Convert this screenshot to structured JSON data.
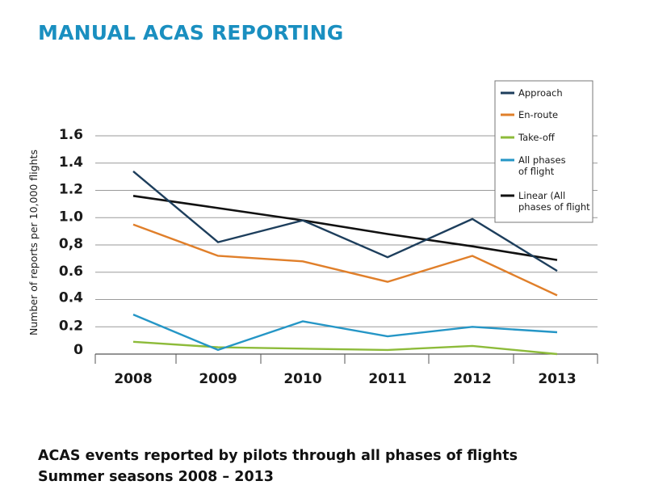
{
  "title": "MANUAL ACAS REPORTING",
  "caption": {
    "line1": "ACAS events reported by pilots through all phases of flights",
    "line2": "Summer seasons 2008 – 2013"
  },
  "chart_data": {
    "type": "line",
    "x": [
      "2008",
      "2009",
      "2010",
      "2011",
      "2012",
      "2013"
    ],
    "ylabel": "Number of reports per 10,000 flights",
    "ylim": [
      0,
      1.6
    ],
    "y_tick_labels": [
      "0",
      "0.2",
      "0.4",
      "0.6",
      "0,8",
      "1.0",
      "1.2",
      "1.4",
      "1.6"
    ],
    "grid": true,
    "legend_position": "top-right",
    "series": [
      {
        "name": "Approach",
        "color": "#1d3e5c",
        "values": [
          1.34,
          0.82,
          0.98,
          0.71,
          0.99,
          0.61
        ]
      },
      {
        "name": "En-route",
        "color": "#e07f2a",
        "values": [
          0.95,
          0.72,
          0.68,
          0.53,
          0.72,
          0.43
        ]
      },
      {
        "name": "Take-off",
        "color": "#8dbb3a",
        "values": [
          0.09,
          0.05,
          0.04,
          0.03,
          0.06,
          0.0
        ]
      },
      {
        "name": "All phases of flight",
        "color": "#2596c6",
        "values": [
          0.29,
          0.03,
          0.24,
          0.13,
          0.2,
          0.16
        ]
      },
      {
        "name": "Linear (All phases of flight",
        "color": "#111111",
        "values": [
          1.16,
          1.07,
          0.98,
          0.88,
          0.79,
          0.69
        ]
      }
    ]
  }
}
